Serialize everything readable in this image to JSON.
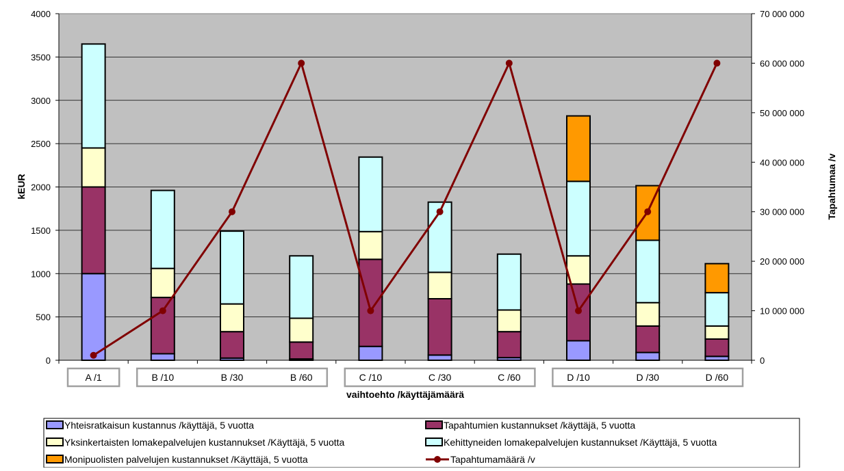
{
  "chart_data": {
    "type": "bar",
    "stacked": true,
    "categories": [
      "A /1",
      "B /10",
      "B /30",
      "B /60",
      "C /10",
      "C /30",
      "C /60",
      "D /10",
      "D /30",
      "D /60"
    ],
    "xlabel": "vaihtoehto /käyttäjämäärä",
    "ylabel": "kEUR",
    "y2label": "Tapahtumaa /v",
    "ylim": [
      0,
      4000
    ],
    "y2lim": [
      0,
      70000000
    ],
    "yticks": [
      "0",
      "500",
      "1000",
      "1500",
      "2000",
      "2500",
      "3000",
      "3500",
      "4000"
    ],
    "y2ticks": [
      "0",
      "10 000 000",
      "20 000 000",
      "30 000 000",
      "40 000 000",
      "50 000 000",
      "60 000 000",
      "70 000 000"
    ],
    "grid": true,
    "plot_background": "#c0c0c0",
    "category_groups": [
      [
        0
      ],
      [
        1,
        2,
        3
      ],
      [
        4,
        5,
        6
      ],
      [
        7,
        8,
        9
      ]
    ],
    "series": [
      {
        "name": "Yhteisratkaisun kustannus /käyttäjä, 5 vuotta",
        "color": "#9999ff",
        "values": [
          1000,
          75,
          25,
          15,
          160,
          60,
          30,
          225,
          90,
          45
        ]
      },
      {
        "name": "Tapahtumien kustannukset /käyttäjä, 5 vuotta",
        "color": "#993366",
        "values": [
          1000,
          650,
          305,
          195,
          1005,
          650,
          300,
          655,
          305,
          200
        ]
      },
      {
        "name": "Yksinkertaisten lomakepalvelujen kustannukset /Käyttäjä, 5 vuotta",
        "color": "#ffffcc",
        "values": [
          450,
          335,
          320,
          275,
          320,
          305,
          250,
          325,
          270,
          150
        ]
      },
      {
        "name": "Kehittyneiden lomakepalvelujen kustannukset /Käyttäjä, 5 vuotta",
        "color": "#ccffff",
        "values": [
          1200,
          900,
          840,
          720,
          860,
          810,
          645,
          860,
          720,
          385
        ]
      },
      {
        "name": "Monipuolisten palvelujen kustannukset /Käyttäjä, 5 vuotta",
        "color": "#ff9900",
        "values": [
          0,
          0,
          0,
          0,
          0,
          0,
          0,
          755,
          630,
          335
        ]
      }
    ],
    "line_series": {
      "name": "Tapahtumamäärä /v",
      "color": "#800000",
      "axis": "right",
      "values": [
        1000000,
        10000000,
        30000000,
        60000000,
        10000000,
        30000000,
        60000000,
        10000000,
        30000000,
        60000000
      ]
    },
    "legend_position": "bottom"
  }
}
